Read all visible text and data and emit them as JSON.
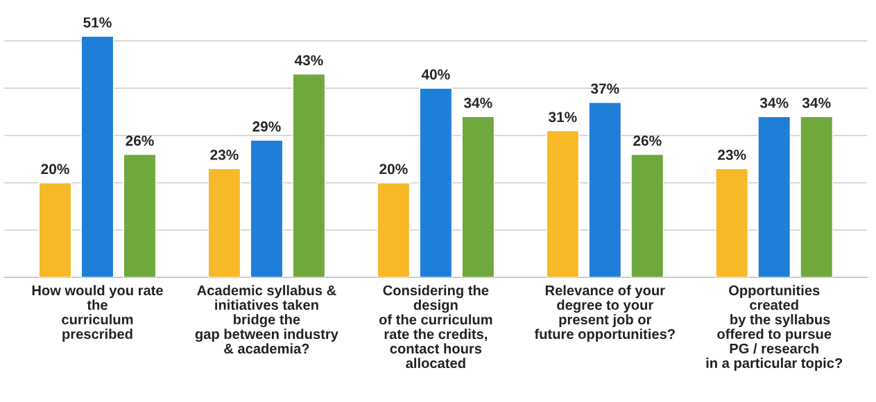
{
  "chart_data": {
    "type": "bar",
    "categories": [
      "How would you rate\nthe\ncurriculum\nprescribed",
      "Academic syllabus &\ninitiatives taken\nbridge the\ngap between industry\n& academia?",
      "Considering the\ndesign\nof the curriculum\nrate the credits,\ncontact hours\nallocated",
      "Relevance of your\ndegree to your\npresent job or\nfuture opportunities?",
      "Opportunities\ncreated\n   by the syllabus\noffered to pursue\nPG / research\nin a particular topic?"
    ],
    "series": [
      {
        "color": "#f7b928",
        "values": [
          20,
          23,
          20,
          31,
          23
        ],
        "value_labels": [
          "20%",
          "23%",
          "20%",
          "31%",
          "23%"
        ]
      },
      {
        "color": "#1f7fd8",
        "values": [
          51,
          29,
          40,
          37,
          34
        ],
        "value_labels": [
          "51%",
          "29%",
          "40%",
          "37%",
          "34%"
        ]
      },
      {
        "color": "#6fa83c",
        "values": [
          26,
          43,
          34,
          26,
          34
        ],
        "value_labels": [
          "26%",
          "43%",
          "34%",
          "26%",
          "34%"
        ]
      }
    ],
    "yticks": [
      {
        "value": 0,
        "label": null
      },
      {
        "value": 10,
        "label": null
      },
      {
        "value": 20,
        "label": null
      },
      {
        "value": 30,
        "label": null
      },
      {
        "value": 40,
        "label": null
      },
      {
        "value": 50,
        "label": null
      }
    ],
    "grid": "y",
    "tick_labels": "x",
    "legend": false
  }
}
